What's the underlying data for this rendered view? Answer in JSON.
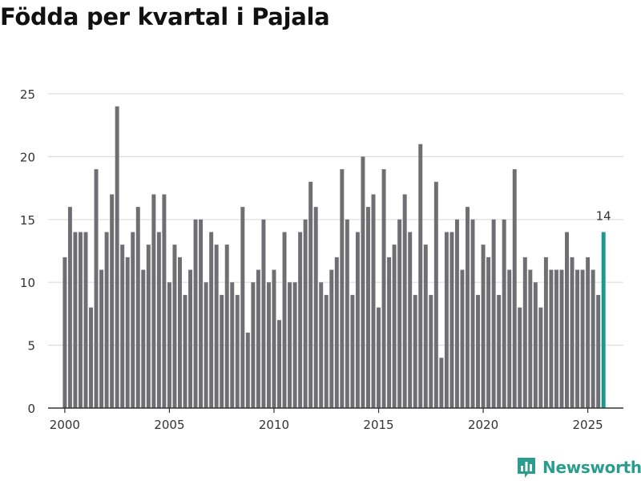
{
  "chart_data": {
    "type": "bar",
    "title": "Födda per kvartal i Pajala",
    "xlabel": "",
    "ylabel": "",
    "ylim": [
      0,
      25
    ],
    "yticks": [
      0,
      5,
      10,
      15,
      20,
      25
    ],
    "xticks": [
      2000,
      2005,
      2010,
      2015,
      2020,
      2025
    ],
    "xlim": [
      1999.2,
      2026.7
    ],
    "grid": true,
    "x": [
      2000.0,
      2000.25,
      2000.5,
      2000.75,
      2001.0,
      2001.25,
      2001.5,
      2001.75,
      2002.0,
      2002.25,
      2002.5,
      2002.75,
      2003.0,
      2003.25,
      2003.5,
      2003.75,
      2004.0,
      2004.25,
      2004.5,
      2004.75,
      2005.0,
      2005.25,
      2005.5,
      2005.75,
      2006.0,
      2006.25,
      2006.5,
      2006.75,
      2007.0,
      2007.25,
      2007.5,
      2007.75,
      2008.0,
      2008.25,
      2008.5,
      2008.75,
      2009.0,
      2009.25,
      2009.5,
      2009.75,
      2010.0,
      2010.25,
      2010.5,
      2010.75,
      2011.0,
      2011.25,
      2011.5,
      2011.75,
      2012.0,
      2012.25,
      2012.5,
      2012.75,
      2013.0,
      2013.25,
      2013.5,
      2013.75,
      2014.0,
      2014.25,
      2014.5,
      2014.75,
      2015.0,
      2015.25,
      2015.5,
      2015.75,
      2016.0,
      2016.25,
      2016.5,
      2016.75,
      2017.0,
      2017.25,
      2017.5,
      2017.75,
      2018.0,
      2018.25,
      2018.5,
      2018.75,
      2019.0,
      2019.25,
      2019.5,
      2019.75,
      2020.0,
      2020.25,
      2020.5,
      2020.75,
      2021.0,
      2021.25,
      2021.5,
      2021.75,
      2022.0,
      2022.25,
      2022.5,
      2022.75,
      2023.0,
      2023.25,
      2023.5,
      2023.75,
      2024.0,
      2024.25,
      2024.5,
      2024.75,
      2025.0,
      2025.25,
      2025.5,
      2025.75
    ],
    "values": [
      12,
      16,
      14,
      14,
      14,
      8,
      19,
      11,
      14,
      17,
      24,
      13,
      12,
      14,
      16,
      11,
      13,
      17,
      14,
      17,
      10,
      13,
      12,
      9,
      11,
      15,
      15,
      10,
      14,
      13,
      9,
      13,
      10,
      9,
      16,
      6,
      10,
      11,
      15,
      10,
      11,
      7,
      14,
      10,
      10,
      14,
      15,
      18,
      16,
      10,
      9,
      11,
      12,
      19,
      15,
      9,
      14,
      20,
      16,
      17,
      8,
      19,
      12,
      13,
      15,
      17,
      14,
      9,
      21,
      13,
      9,
      18,
      4,
      14,
      14,
      15,
      11,
      16,
      15,
      9,
      13,
      12,
      15,
      9,
      15,
      11,
      19,
      8,
      12,
      11,
      10,
      8,
      12,
      11,
      11,
      11,
      14,
      12,
      11,
      11,
      12,
      11,
      9,
      14
    ],
    "highlight_index": 103,
    "highlight_label": "14",
    "colors": {
      "bar": "#6f6f73",
      "highlight": "#1a9a8c",
      "grid": "#dddddd",
      "axis": "#333333"
    }
  },
  "logo": {
    "text": "Newsworthy",
    "color": "#2a9d8f"
  }
}
